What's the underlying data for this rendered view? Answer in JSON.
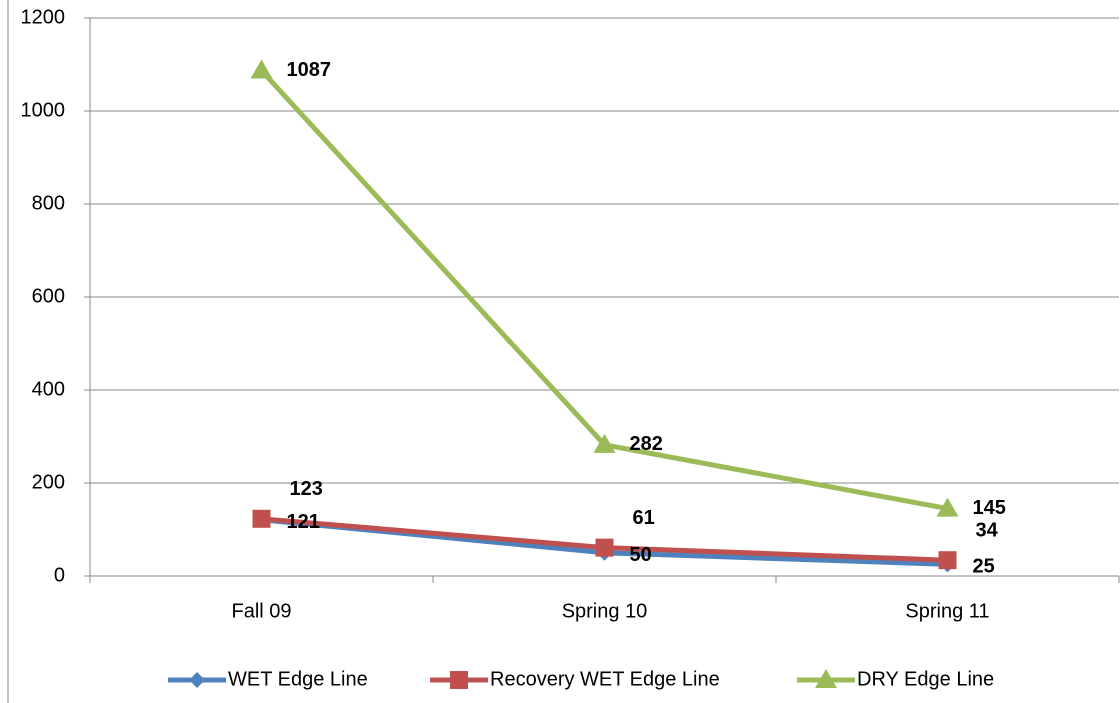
{
  "chart_data": {
    "type": "line",
    "categories": [
      "Fall 09",
      "Spring 10",
      "Spring 11"
    ],
    "series": [
      {
        "name": "WET Edge Line",
        "color": "#4f81bd",
        "values": [
          121,
          50,
          25
        ]
      },
      {
        "name": "Recovery WET Edge Line",
        "color": "#c0504d",
        "values": [
          123,
          61,
          34
        ]
      },
      {
        "name": "DRY Edge Line",
        "color": "#9bbb59",
        "values": [
          1087,
          282,
          145
        ]
      }
    ],
    "ylim": [
      0,
      1200
    ],
    "yticks": [
      0,
      200,
      400,
      600,
      800,
      1000,
      1200
    ],
    "grid": true,
    "legend": "bottom"
  }
}
